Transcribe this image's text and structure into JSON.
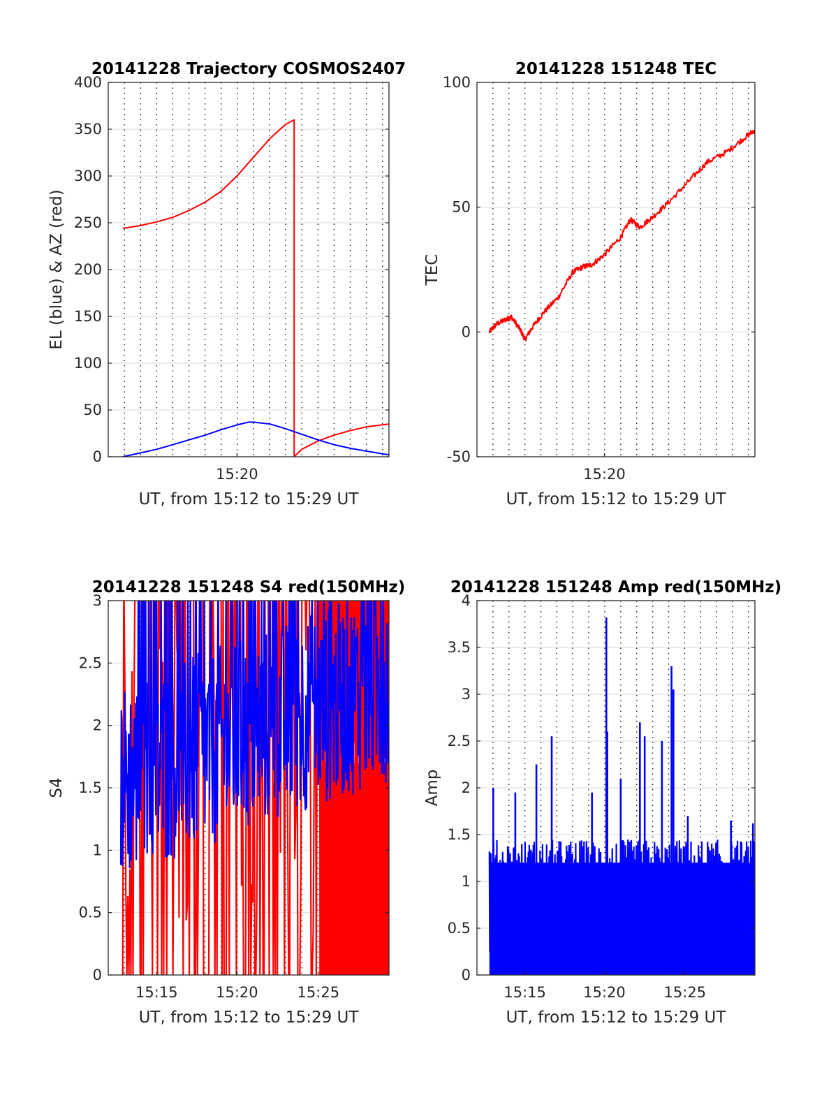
{
  "chart_data": [
    {
      "type": "line",
      "title": "20141228 Trajectory COSMOS2407",
      "xlabel": "UT, from 15:12 to 15:29 UT",
      "ylabel": "EL (blue) & AZ (red)",
      "xlim": [
        15.2,
        15.49
      ],
      "ylim": [
        0,
        400
      ],
      "xticks": [
        {
          "value": 15.333,
          "label": "15:20"
        }
      ],
      "yticks": [
        {
          "value": 0,
          "label": "0"
        },
        {
          "value": 50,
          "label": "50"
        },
        {
          "value": 100,
          "label": "100"
        },
        {
          "value": 150,
          "label": "150"
        },
        {
          "value": 200,
          "label": "200"
        },
        {
          "value": 250,
          "label": "250"
        },
        {
          "value": 300,
          "label": "300"
        },
        {
          "value": 350,
          "label": "350"
        },
        {
          "value": 400,
          "label": "400"
        }
      ],
      "grid": "horizontal solid, vertical dotted every 1 min",
      "series": [
        {
          "color": "#ff0000",
          "x": [
            15.215,
            15.233,
            15.25,
            15.267,
            15.283,
            15.3,
            15.317,
            15.333,
            15.35,
            15.367,
            15.383,
            15.392,
            15.392,
            15.4,
            15.417,
            15.433,
            15.45,
            15.467,
            15.49
          ],
          "values": [
            244,
            247,
            251,
            256,
            263,
            272,
            284,
            300,
            320,
            340,
            355,
            360,
            0,
            8,
            17,
            23,
            28,
            32,
            35
          ]
        },
        {
          "color": "#0000ff",
          "x": [
            15.215,
            15.233,
            15.25,
            15.267,
            15.283,
            15.3,
            15.317,
            15.333,
            15.345,
            15.35,
            15.367,
            15.383,
            15.4,
            15.417,
            15.433,
            15.45,
            15.467,
            15.49
          ],
          "values": [
            0,
            4,
            8,
            13,
            18,
            23,
            29,
            34,
            37,
            37,
            35,
            30,
            24,
            18,
            13,
            9,
            6,
            2
          ]
        }
      ]
    },
    {
      "type": "line",
      "title": "20141228 151248 TEC",
      "xlabel": "UT, from 15:12 to 15:29 UT",
      "ylabel": "TEC",
      "xlim": [
        15.2,
        15.49
      ],
      "ylim": [
        -50,
        100
      ],
      "xticks": [
        {
          "value": 15.333,
          "label": "15:20"
        }
      ],
      "yticks": [
        {
          "value": -50,
          "label": "-50"
        },
        {
          "value": 0,
          "label": "0"
        },
        {
          "value": 50,
          "label": "50"
        },
        {
          "value": 100,
          "label": "100"
        }
      ],
      "grid": "horizontal solid, vertical dotted every 1 min",
      "series": [
        {
          "color": "#ff0000",
          "x": [
            15.213,
            15.22,
            15.23,
            15.236,
            15.245,
            15.25,
            15.258,
            15.27,
            15.285,
            15.3,
            15.31,
            15.32,
            15.333,
            15.35,
            15.36,
            15.37,
            15.383,
            15.4,
            15.42,
            15.44,
            15.46,
            15.48,
            15.49
          ],
          "values": [
            0,
            3,
            5,
            6,
            1,
            -3,
            2,
            8,
            14,
            24,
            26,
            27,
            31,
            38,
            45,
            42,
            46,
            52,
            60,
            68,
            72,
            78,
            81
          ]
        }
      ]
    },
    {
      "type": "line",
      "title": "20141228 151248 S4 red(150MHz)",
      "xlabel": "UT, from 15:12 to 15:29 UT",
      "ylabel": "S4",
      "xlim": [
        15.2,
        15.49
      ],
      "ylim": [
        0,
        3
      ],
      "xticks": [
        {
          "value": 15.25,
          "label": "15:15"
        },
        {
          "value": 15.333,
          "label": "15:20"
        },
        {
          "value": 15.417,
          "label": "15:25"
        }
      ],
      "yticks": [
        {
          "value": 0,
          "label": "0"
        },
        {
          "value": 0.5,
          "label": "0.5"
        },
        {
          "value": 1,
          "label": "1"
        },
        {
          "value": 1.5,
          "label": "1.5"
        },
        {
          "value": 2,
          "label": "2"
        },
        {
          "value": 2.5,
          "label": "2.5"
        },
        {
          "value": 3,
          "label": "3"
        }
      ],
      "grid": "horizontal solid, vertical dotted every 1 min",
      "series": [
        {
          "color": "#ff0000",
          "x_range": [
            15.215,
            15.49
          ],
          "typical_low": 0,
          "typical_high": 3,
          "dense_fill_from": 15.418,
          "dense_fill_level": 1.7
        },
        {
          "color": "#0000ff",
          "x_range": [
            15.213,
            15.49
          ],
          "typical_low": 1.1,
          "typical_high": 3,
          "mean": 1.7
        }
      ]
    },
    {
      "type": "line",
      "title": "20141228 151248 Amp red(150MHz)",
      "xlabel": "UT, from 15:12 to 15:29 UT",
      "ylabel": "Amp",
      "xlim": [
        15.2,
        15.49
      ],
      "ylim": [
        0,
        4
      ],
      "xticks": [
        {
          "value": 15.25,
          "label": "15:15"
        },
        {
          "value": 15.333,
          "label": "15:20"
        },
        {
          "value": 15.417,
          "label": "15:25"
        }
      ],
      "yticks": [
        {
          "value": 0,
          "label": "0"
        },
        {
          "value": 0.5,
          "label": "0.5"
        },
        {
          "value": 1,
          "label": "1"
        },
        {
          "value": 1.5,
          "label": "1.5"
        },
        {
          "value": 2,
          "label": "2"
        },
        {
          "value": 2.5,
          "label": "2.5"
        },
        {
          "value": 3,
          "label": "3"
        },
        {
          "value": 3.5,
          "label": "3.5"
        },
        {
          "value": 4,
          "label": "4"
        }
      ],
      "grid": "horizontal solid, vertical dotted every 1 min",
      "series": [
        {
          "color": "#0000ff",
          "x_range": [
            15.213,
            15.49
          ],
          "typical_high": 1.4,
          "peaks": [
            {
              "x": 15.217,
              "value": 2.0
            },
            {
              "x": 15.24,
              "value": 1.95
            },
            {
              "x": 15.262,
              "value": 2.25
            },
            {
              "x": 15.278,
              "value": 2.55
            },
            {
              "x": 15.32,
              "value": 1.95
            },
            {
              "x": 15.335,
              "value": 3.82
            },
            {
              "x": 15.336,
              "value": 2.6
            },
            {
              "x": 15.35,
              "value": 2.1
            },
            {
              "x": 15.37,
              "value": 2.7
            },
            {
              "x": 15.375,
              "value": 2.55
            },
            {
              "x": 15.393,
              "value": 2.5
            },
            {
              "x": 15.403,
              "value": 3.3
            },
            {
              "x": 15.405,
              "value": 3.05
            },
            {
              "x": 15.42,
              "value": 1.7
            },
            {
              "x": 15.465,
              "value": 1.65
            },
            {
              "x": 15.488,
              "value": 1.62
            }
          ]
        }
      ]
    }
  ]
}
